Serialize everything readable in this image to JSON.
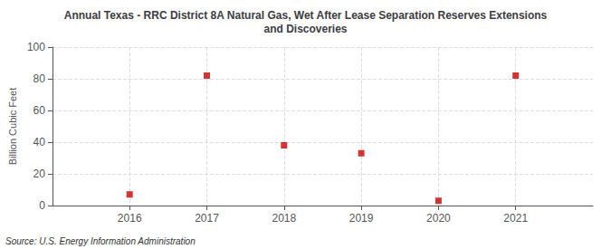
{
  "chart_data": {
    "type": "scatter",
    "title": "Annual Texas - RRC District 8A Natural Gas, Wet After Lease Separation Reserves Extensions\nand Discoveries",
    "y_label": "Billion Cubic Feet",
    "annotation": "Source: U.S. Energy Information Administration",
    "x": [
      2016,
      2017,
      2018,
      2019,
      2020,
      2021
    ],
    "values": [
      7,
      82,
      38,
      33,
      3,
      82
    ],
    "color": "#cc0000",
    "marker": "square",
    "xlim": [
      2015,
      2022
    ],
    "xticks": [
      2016,
      2017,
      2018,
      2019,
      2020,
      2021
    ],
    "ylim": [
      0,
      100
    ],
    "yticks": [
      0,
      20,
      40,
      60,
      80,
      100
    ],
    "grid": true
  }
}
